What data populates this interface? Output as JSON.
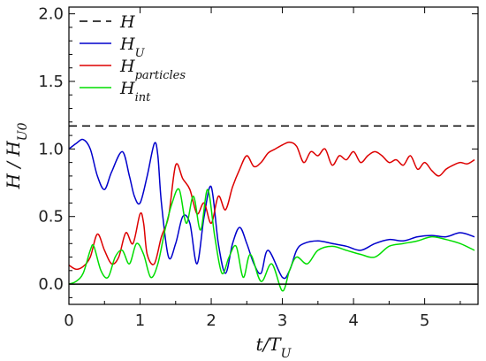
{
  "chart_data": {
    "type": "line",
    "xlabel_main": "t/T",
    "xlabel_sub": "U",
    "ylabel_main": "H / H",
    "ylabel_sub": "U0",
    "xlim": [
      0,
      5.75
    ],
    "ylim": [
      -0.15,
      2.05
    ],
    "xticks": [
      0,
      1,
      2,
      3,
      4,
      5
    ],
    "yticks": [
      0.0,
      0.5,
      1.0,
      1.5,
      2.0
    ],
    "ytick_labels": [
      "0.0",
      "0.5",
      "1.0",
      "1.5",
      "2.0"
    ],
    "reference_lines": [
      {
        "y": 0,
        "color": "#000000"
      }
    ],
    "legend_position": "top-left",
    "series": [
      {
        "key": "H",
        "name_main": "H",
        "name_sub": "",
        "color": "#000000",
        "dash": "9,6",
        "x": [
          0,
          5.75
        ],
        "y": [
          1.17,
          1.17
        ]
      },
      {
        "key": "HU",
        "name_main": "H",
        "name_sub": "U",
        "color": "#0000cc",
        "dash": "",
        "x": [
          0,
          0.1,
          0.2,
          0.3,
          0.4,
          0.5,
          0.6,
          0.75,
          0.85,
          0.92,
          1.0,
          1.1,
          1.2,
          1.25,
          1.3,
          1.4,
          1.5,
          1.6,
          1.7,
          1.8,
          1.9,
          2.0,
          2.1,
          2.2,
          2.3,
          2.4,
          2.5,
          2.6,
          2.7,
          2.8,
          3.0,
          3.1,
          3.2,
          3.3,
          3.5,
          3.7,
          3.9,
          4.1,
          4.3,
          4.5,
          4.7,
          4.9,
          5.1,
          5.3,
          5.5,
          5.7
        ],
        "y": [
          1.0,
          1.04,
          1.07,
          1.0,
          0.8,
          0.7,
          0.83,
          0.98,
          0.8,
          0.65,
          0.6,
          0.8,
          1.04,
          0.95,
          0.6,
          0.2,
          0.3,
          0.5,
          0.45,
          0.15,
          0.5,
          0.72,
          0.3,
          0.08,
          0.3,
          0.42,
          0.3,
          0.15,
          0.08,
          0.25,
          0.05,
          0.1,
          0.25,
          0.3,
          0.32,
          0.3,
          0.28,
          0.25,
          0.3,
          0.33,
          0.32,
          0.35,
          0.36,
          0.35,
          0.38,
          0.35
        ]
      },
      {
        "key": "Hp",
        "name_main": "H",
        "name_sub": "particles",
        "color": "#dd0000",
        "dash": "",
        "x": [
          0,
          0.1,
          0.2,
          0.3,
          0.4,
          0.5,
          0.6,
          0.7,
          0.8,
          0.9,
          1.0,
          1.05,
          1.1,
          1.2,
          1.3,
          1.4,
          1.5,
          1.6,
          1.7,
          1.8,
          1.9,
          2.0,
          2.1,
          2.2,
          2.3,
          2.4,
          2.5,
          2.6,
          2.7,
          2.8,
          2.9,
          3.0,
          3.1,
          3.2,
          3.3,
          3.4,
          3.5,
          3.6,
          3.7,
          3.8,
          3.9,
          4.0,
          4.1,
          4.2,
          4.3,
          4.4,
          4.5,
          4.6,
          4.7,
          4.8,
          4.9,
          5.0,
          5.1,
          5.2,
          5.3,
          5.4,
          5.5,
          5.6,
          5.7
        ],
        "y": [
          0.14,
          0.11,
          0.13,
          0.2,
          0.37,
          0.25,
          0.15,
          0.2,
          0.38,
          0.3,
          0.52,
          0.45,
          0.22,
          0.15,
          0.35,
          0.5,
          0.88,
          0.78,
          0.7,
          0.52,
          0.6,
          0.45,
          0.65,
          0.55,
          0.72,
          0.85,
          0.95,
          0.87,
          0.9,
          0.97,
          1.0,
          1.03,
          1.05,
          1.02,
          0.9,
          0.98,
          0.95,
          1.0,
          0.88,
          0.95,
          0.92,
          0.98,
          0.9,
          0.95,
          0.98,
          0.95,
          0.9,
          0.92,
          0.88,
          0.95,
          0.85,
          0.9,
          0.84,
          0.8,
          0.85,
          0.88,
          0.9,
          0.89,
          0.92
        ]
      },
      {
        "key": "Hint",
        "name_main": "H",
        "name_sub": "int",
        "color": "#00dd00",
        "dash": "",
        "x": [
          0,
          0.1,
          0.2,
          0.3,
          0.35,
          0.45,
          0.55,
          0.65,
          0.75,
          0.85,
          0.95,
          1.05,
          1.15,
          1.25,
          1.35,
          1.45,
          1.55,
          1.65,
          1.75,
          1.85,
          1.95,
          2.05,
          2.15,
          2.25,
          2.35,
          2.45,
          2.55,
          2.7,
          2.85,
          3.0,
          3.1,
          3.2,
          3.35,
          3.5,
          3.7,
          3.9,
          4.1,
          4.3,
          4.5,
          4.7,
          4.9,
          5.1,
          5.3,
          5.5,
          5.7
        ],
        "y": [
          0.0,
          0.02,
          0.08,
          0.25,
          0.28,
          0.1,
          0.05,
          0.2,
          0.25,
          0.15,
          0.3,
          0.22,
          0.05,
          0.15,
          0.4,
          0.6,
          0.7,
          0.45,
          0.65,
          0.4,
          0.7,
          0.35,
          0.08,
          0.2,
          0.28,
          0.05,
          0.22,
          0.02,
          0.15,
          -0.05,
          0.1,
          0.2,
          0.15,
          0.25,
          0.28,
          0.25,
          0.22,
          0.2,
          0.28,
          0.3,
          0.32,
          0.35,
          0.33,
          0.3,
          0.25
        ]
      }
    ]
  }
}
